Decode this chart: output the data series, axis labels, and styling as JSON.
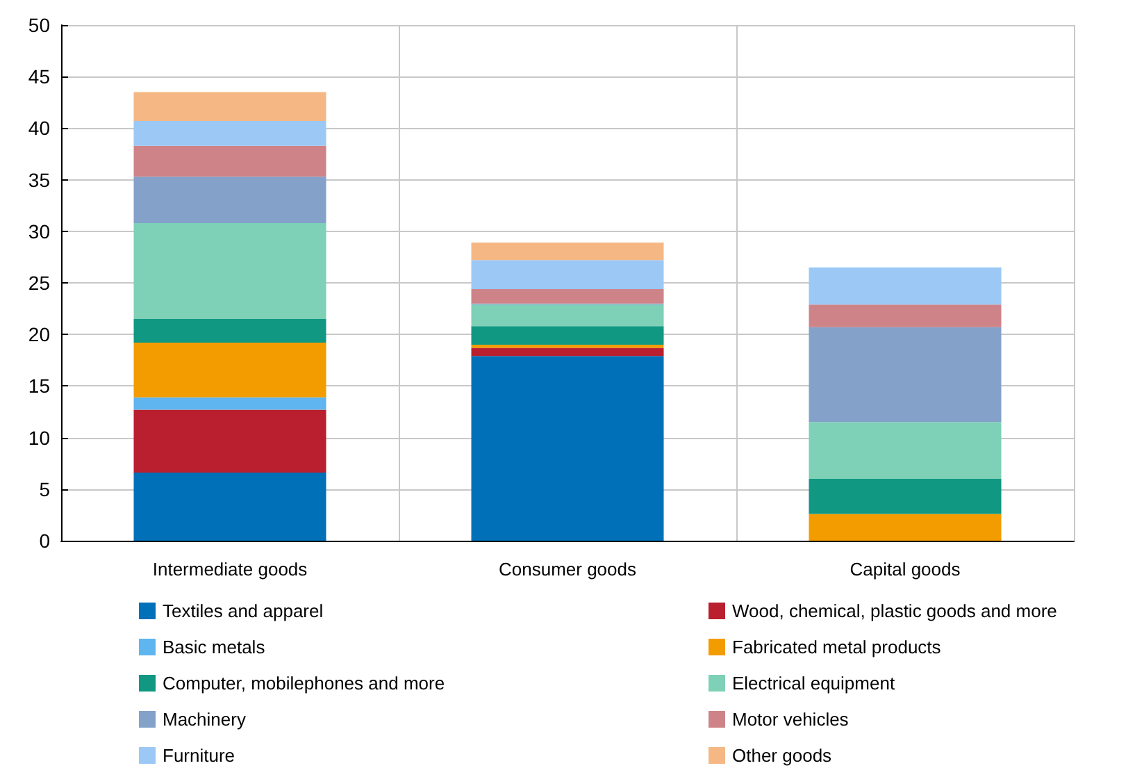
{
  "chart_data": {
    "type": "bar",
    "stacked": true,
    "categories": [
      "Intermediate goods",
      "Consumer goods",
      "Capital goods"
    ],
    "series": [
      {
        "name": "Textiles and apparel",
        "color": "#0070b8",
        "values": [
          6.6,
          17.9,
          0
        ]
      },
      {
        "name": "Wood, chemical, plastic goods and more",
        "color": "#b91f2e",
        "values": [
          6.1,
          0.8,
          0
        ]
      },
      {
        "name": "Basic metals",
        "color": "#5eb5f0",
        "values": [
          1.2,
          0,
          0
        ]
      },
      {
        "name": "Fabricated metal products",
        "color": "#f39c00",
        "values": [
          5.3,
          0.3,
          2.6
        ]
      },
      {
        "name": "Computer, mobilephones and more",
        "color": "#109882",
        "values": [
          2.3,
          1.8,
          3.4
        ]
      },
      {
        "name": "Electrical equipment",
        "color": "#7ed0b6",
        "values": [
          9.3,
          2.1,
          5.5
        ]
      },
      {
        "name": "Machinery",
        "color": "#84a1ca",
        "values": [
          4.5,
          0.1,
          9.2
        ]
      },
      {
        "name": "Motor vehicles",
        "color": "#ce8388",
        "values": [
          3.0,
          1.4,
          2.2
        ]
      },
      {
        "name": "Furniture",
        "color": "#9bc8f5",
        "values": [
          2.4,
          2.8,
          3.6
        ]
      },
      {
        "name": "Other goods",
        "color": "#f5b884",
        "values": [
          2.8,
          1.7,
          0
        ]
      }
    ],
    "ylim": [
      0,
      50
    ],
    "yticks": [
      0,
      5,
      10,
      15,
      20,
      25,
      30,
      35,
      40,
      45,
      50
    ],
    "grid": true,
    "legend": "bottom"
  }
}
